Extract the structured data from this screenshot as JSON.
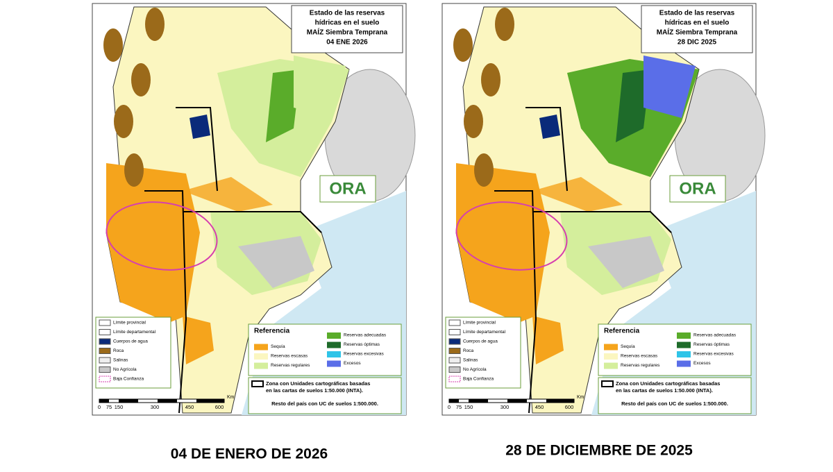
{
  "maps": [
    {
      "title_lines": [
        "Estado de las reservas",
        "hídricas en el suelo",
        "MAÍZ Siembra Temprana",
        "04 ENE 2026"
      ],
      "caption": "04 DE ENERO DE 2026"
    },
    {
      "title_lines": [
        "Estado de las reservas",
        "hídricas en el suelo",
        "MAÍZ Siembra Temprana",
        "28 DIC 2025"
      ],
      "caption": "28 DE DICIEMBRE DE 2025"
    }
  ],
  "logo": "ORA",
  "legend": [
    "Límite provincial",
    "Límite departamental",
    "Cuerpos de agua",
    "Roca",
    "Salinas",
    "No Agrícola",
    "Baja Confianza"
  ],
  "reference": {
    "title": "Referencia",
    "items": [
      "Sequía",
      "Reservas escasas",
      "Reservas regulares",
      "Reservas adecuadas",
      "Reservas óptimas",
      "Reservas excesivas",
      "Excesos"
    ]
  },
  "zone_note": [
    "Zona con Unidades cartográficas basadas",
    "en las cartas de suelos 1:50.000 (INTA).",
    "Resto del país con UC de suelos 1:500.000."
  ],
  "scale": {
    "ticks": [
      "0",
      "75",
      "150",
      "300",
      "450",
      "600"
    ],
    "unit": "Km"
  }
}
